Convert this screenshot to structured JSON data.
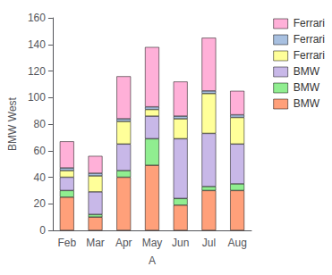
{
  "chart_data": {
    "type": "bar",
    "stacked": true,
    "categories": [
      "Feb",
      "Mar",
      "Apr",
      "May",
      "Jun",
      "Jul",
      "Aug"
    ],
    "series": [
      {
        "name": "BMW",
        "color": "#FFA07A",
        "values": [
          25,
          10,
          40,
          49,
          19,
          30,
          30
        ]
      },
      {
        "name": "BMW",
        "color": "#90EE90",
        "values": [
          5,
          2,
          5,
          20,
          5,
          3,
          5
        ]
      },
      {
        "name": "BMW",
        "color": "#C8B8E8",
        "values": [
          10,
          17,
          20,
          17,
          45,
          40,
          30
        ]
      },
      {
        "name": "Ferrari",
        "color": "#FFFF99",
        "values": [
          5,
          12,
          17,
          5,
          15,
          30,
          20
        ]
      },
      {
        "name": "Ferrari",
        "color": "#A8C0E0",
        "values": [
          2,
          2,
          2,
          2,
          2,
          2,
          2
        ]
      },
      {
        "name": "Ferrari",
        "color": "#FFB0D8",
        "values": [
          20,
          13,
          32,
          45,
          26,
          40,
          18
        ]
      }
    ],
    "xlabel": "A",
    "ylabel": "BMW West",
    "ylim": [
      0,
      160
    ],
    "yticks": [
      0,
      20,
      40,
      60,
      80,
      100,
      120,
      140,
      160
    ],
    "grid": false,
    "legend": "upper right"
  }
}
